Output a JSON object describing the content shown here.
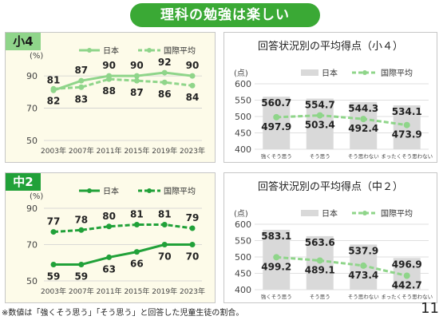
{
  "page": {
    "title": "理科の勉強は楽しい",
    "footnote": "※数値は「強くそう思う」「そう思う」と回答した児童生徒の割合。",
    "page_number": "11",
    "colors": {
      "title_bg": "#3aa935",
      "elem_line": "#8fd58a",
      "jh_line": "#21a139",
      "bar": "#d9d9d9",
      "grade4_tag": "#8fd58a",
      "grade8_tag": "#21a139",
      "left_panel_bg": "#fdfbe9"
    }
  },
  "chart_data": [
    {
      "id": "grade4-trend",
      "type": "line",
      "grade_label": "小4",
      "unit_label": "(%)",
      "x": [
        "2003年",
        "2007年",
        "2011年",
        "2015年",
        "2019年",
        "2023年"
      ],
      "series": [
        {
          "name": "日本",
          "values": [
            81,
            87,
            90,
            90,
            92,
            90
          ],
          "style": "solid"
        },
        {
          "name": "国際平均",
          "values": [
            82,
            83,
            88,
            87,
            86,
            84
          ],
          "style": "dashed"
        }
      ],
      "ylim": [
        50,
        95
      ],
      "yticks": [
        50,
        70,
        90
      ],
      "grid": true
    },
    {
      "id": "grade4-scores",
      "type": "bar",
      "title": "回答状況別の平均得点（小４）",
      "unit_label": "(点)",
      "categories": [
        "強くそう思う",
        "そう思う",
        "そう思わない",
        "まったくそう思わない"
      ],
      "series": [
        {
          "name": "日本",
          "values": [
            560.7,
            554.7,
            544.3,
            534.1
          ],
          "kind": "bar"
        },
        {
          "name": "国際平均",
          "values": [
            497.9,
            503.4,
            492.4,
            473.9
          ],
          "kind": "line"
        }
      ],
      "ylim": [
        400,
        600
      ],
      "yticks": [
        400,
        450,
        500,
        550,
        600
      ],
      "grid": true
    },
    {
      "id": "grade8-trend",
      "type": "line",
      "grade_label": "中2",
      "unit_label": "(%)",
      "x": [
        "2003年",
        "2007年",
        "2011年",
        "2015年",
        "2019年",
        "2023年"
      ],
      "series": [
        {
          "name": "日本",
          "values": [
            59,
            59,
            63,
            66,
            70,
            70
          ],
          "style": "solid"
        },
        {
          "name": "国際平均",
          "values": [
            77,
            78,
            80,
            81,
            81,
            79
          ],
          "style": "dashed"
        }
      ],
      "ylim": [
        50,
        90
      ],
      "yticks": [
        50,
        70,
        90
      ],
      "grid": true
    },
    {
      "id": "grade8-scores",
      "type": "bar",
      "title": "回答状況別の平均得点（中２）",
      "unit_label": "(点)",
      "categories": [
        "強くそう思う",
        "そう思う",
        "そう思わない",
        "まったくそう思わない"
      ],
      "series": [
        {
          "name": "日本",
          "values": [
            583.1,
            563.6,
            537.9,
            496.9
          ],
          "kind": "bar"
        },
        {
          "name": "国際平均",
          "values": [
            499.2,
            489.1,
            473.4,
            442.7
          ],
          "kind": "line"
        }
      ],
      "ylim": [
        400,
        600
      ],
      "yticks": [
        400,
        450,
        500,
        550,
        600
      ],
      "grid": true
    }
  ]
}
